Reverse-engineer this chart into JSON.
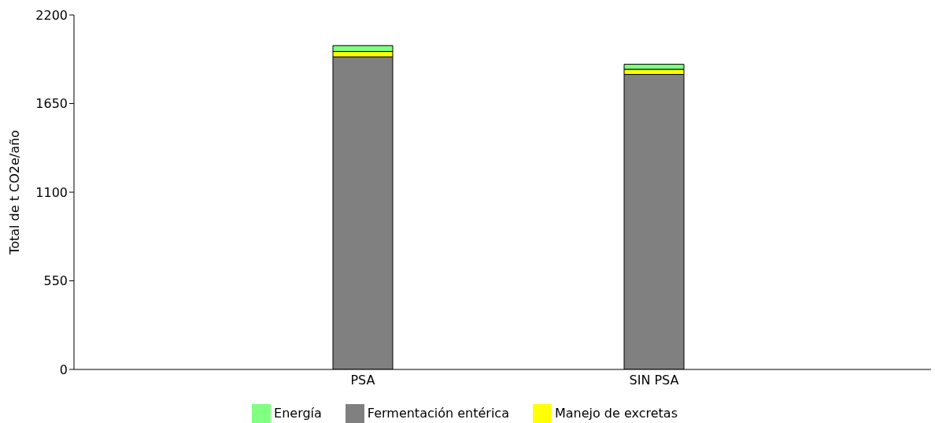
{
  "chart_data": {
    "type": "bar",
    "stacked": true,
    "ylabel": "Total de t CO2e/año",
    "categories": [
      "PSA",
      "SIN PSA"
    ],
    "series": [
      {
        "name": "Fermentación entérica",
        "color": "#808080",
        "values": [
          1940,
          1831
        ]
      },
      {
        "name": "Manejo de excretas",
        "color": "#ffff00",
        "values": [
          33,
          32
        ]
      },
      {
        "name": "Energía",
        "color": "#80ff80",
        "values": [
          37,
          31
        ]
      }
    ],
    "ylim": [
      0,
      2200
    ],
    "yticks": [
      0,
      550,
      1100,
      1650,
      2200
    ],
    "grid": false,
    "legend": "bottom"
  }
}
